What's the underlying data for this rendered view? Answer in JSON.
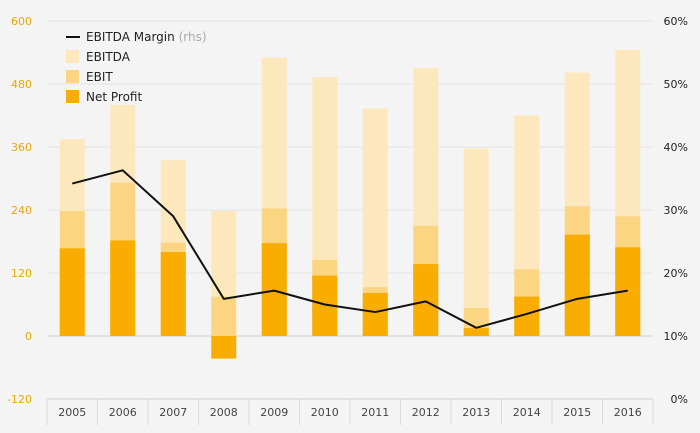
{
  "chart_data": {
    "type": "bar",
    "categories": [
      "2005",
      "2006",
      "2007",
      "2008",
      "2009",
      "2010",
      "2011",
      "2012",
      "2013",
      "2014",
      "2015",
      "2016"
    ],
    "series": [
      {
        "name": "EBITDA",
        "kind": "bar",
        "values": [
          375,
          440,
          335,
          238,
          530,
          493,
          433,
          510,
          357,
          420,
          502,
          545
        ],
        "color": "#fde8bd"
      },
      {
        "name": "EBIT",
        "kind": "bar",
        "values": [
          238,
          292,
          178,
          75,
          243,
          145,
          93,
          210,
          53,
          127,
          247,
          228
        ],
        "color": "#fcd583"
      },
      {
        "name": "Net Profit",
        "kind": "bar",
        "values": [
          167,
          182,
          160,
          -43,
          177,
          115,
          82,
          137,
          15,
          75,
          193,
          169
        ],
        "color": "#f8ad00"
      },
      {
        "name": "EBITDA Margin",
        "name_suffix": "(rhs)",
        "kind": "line",
        "axis": "right",
        "values": [
          34.2,
          36.3,
          29.0,
          15.9,
          17.2,
          15.0,
          13.8,
          15.5,
          11.3,
          13.5,
          15.9,
          17.2
        ],
        "color": "#111111"
      }
    ],
    "y_left": {
      "min": -120,
      "max": 600,
      "ticks": [
        -120,
        0,
        120,
        240,
        360,
        480,
        600
      ],
      "tick_labels": [
        "-120",
        "0",
        "120",
        "240",
        "360",
        "480",
        "600"
      ],
      "color": "#e8a800"
    },
    "y_right": {
      "min": 0,
      "max": 60,
      "ticks": [
        0,
        10,
        20,
        30,
        40,
        50,
        60
      ],
      "tick_labels": [
        "0%",
        "10%",
        "20%",
        "30%",
        "40%",
        "50%",
        "60%"
      ],
      "unit": "%"
    },
    "grid": "horizontal",
    "legend_position": "top-left",
    "title": "",
    "xlabel": "",
    "ylabel": ""
  }
}
